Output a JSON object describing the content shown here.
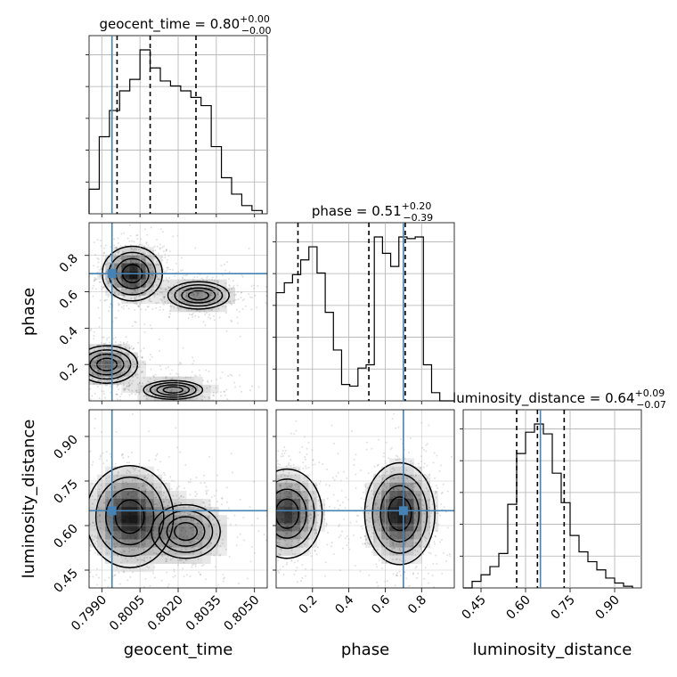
{
  "chart_data": {
    "type": "corner",
    "parameters": [
      "geocent_time",
      "phase",
      "luminosity_distance"
    ],
    "truths": {
      "geocent_time": 0.7994,
      "phase": 0.7,
      "luminosity_distance": 0.65
    },
    "titles": [
      {
        "param": "geocent_time",
        "name": "geocent_time",
        "median": "0.80",
        "plus": "+0.00",
        "minus": "−0.00"
      },
      {
        "param": "phase",
        "name": "phase",
        "median": "0.51",
        "plus": "+0.20",
        "minus": "−0.39"
      },
      {
        "param": "luminosity_distance",
        "name": "luminosity_distance",
        "median": "0.64",
        "plus": "+0.09",
        "minus": "−0.07"
      }
    ],
    "axes": {
      "geocent_time": {
        "label": "geocent_time",
        "range": [
          0.7985,
          0.8055
        ],
        "ticks": [
          0.799,
          0.8005,
          0.802,
          0.8035,
          0.805
        ],
        "tick_labels": [
          "0.7990",
          "0.8005",
          "0.8020",
          "0.8035",
          "0.8050"
        ]
      },
      "phase": {
        "label": "phase",
        "range": [
          0.0,
          0.98
        ],
        "ticks": [
          0.2,
          0.4,
          0.6,
          0.8
        ],
        "tick_labels": [
          "0.2",
          "0.4",
          "0.6",
          "0.8"
        ]
      },
      "luminosity_distance": {
        "label": "luminosity_distance",
        "range": [
          0.39,
          0.99
        ],
        "ticks": [
          0.45,
          0.6,
          0.75,
          0.9
        ],
        "tick_labels": [
          "0.45",
          "0.60",
          "0.75",
          "0.90"
        ]
      }
    },
    "histograms": {
      "geocent_time": {
        "bin_edges": [
          0.7985,
          0.7989,
          0.7993,
          0.7997,
          0.8001,
          0.8005,
          0.8009,
          0.8013,
          0.8017,
          0.8021,
          0.8025,
          0.8029,
          0.8033,
          0.8037,
          0.8041,
          0.8045,
          0.8049,
          0.8053
        ],
        "counts": [
          0.15,
          0.47,
          0.63,
          0.75,
          0.82,
          1.0,
          0.89,
          0.81,
          0.78,
          0.75,
          0.71,
          0.66,
          0.41,
          0.22,
          0.12,
          0.05,
          0.02
        ],
        "quantiles": [
          0.7996,
          0.8009,
          0.8027
        ]
      },
      "phase": {
        "bin_edges": [
          0.0,
          0.045,
          0.09,
          0.135,
          0.18,
          0.225,
          0.27,
          0.315,
          0.36,
          0.405,
          0.45,
          0.495,
          0.54,
          0.585,
          0.63,
          0.675,
          0.72,
          0.765,
          0.81,
          0.855,
          0.9,
          0.945,
          0.98
        ],
        "counts": [
          0.66,
          0.72,
          0.77,
          0.86,
          0.94,
          0.78,
          0.54,
          0.31,
          0.1,
          0.09,
          0.2,
          0.22,
          1.0,
          0.9,
          0.82,
          1.0,
          0.99,
          1.0,
          0.22,
          0.05,
          0.0,
          0.0
        ],
        "quantiles": [
          0.12,
          0.51,
          0.71
        ]
      },
      "luminosity_distance": {
        "bin_edges": [
          0.39,
          0.42,
          0.45,
          0.48,
          0.51,
          0.54,
          0.57,
          0.6,
          0.63,
          0.66,
          0.69,
          0.72,
          0.75,
          0.78,
          0.81,
          0.84,
          0.87,
          0.9,
          0.93,
          0.96
        ],
        "counts": [
          0.0,
          0.04,
          0.08,
          0.13,
          0.21,
          0.51,
          0.82,
          0.95,
          1.0,
          0.94,
          0.7,
          0.52,
          0.32,
          0.22,
          0.16,
          0.11,
          0.06,
          0.03,
          0.01
        ],
        "quantiles": [
          0.57,
          0.64,
          0.73
        ]
      }
    },
    "pairs": [
      {
        "x": "geocent_time",
        "y": "phase",
        "blobs": [
          {
            "cx": 0.8002,
            "cy": 0.7,
            "sx": 0.00055,
            "sy": 0.07,
            "w": 0.9
          },
          {
            "cx": 0.8028,
            "cy": 0.58,
            "sx": 0.0008,
            "sy": 0.05,
            "w": 0.5
          },
          {
            "cx": 0.7992,
            "cy": 0.2,
            "sx": 0.0007,
            "sy": 0.06,
            "w": 0.6
          },
          {
            "cx": 0.8018,
            "cy": 0.06,
            "sx": 0.0009,
            "sy": 0.04,
            "w": 0.4
          }
        ]
      },
      {
        "x": "geocent_time",
        "y": "luminosity_distance",
        "blobs": [
          {
            "cx": 0.8001,
            "cy": 0.63,
            "sx": 0.0008,
            "sy": 0.08,
            "w": 0.9
          },
          {
            "cx": 0.8023,
            "cy": 0.58,
            "sx": 0.0009,
            "sy": 0.06,
            "w": 0.5
          }
        ]
      },
      {
        "x": "phase",
        "y": "luminosity_distance",
        "blobs": [
          {
            "cx": 0.06,
            "cy": 0.64,
            "sx": 0.09,
            "sy": 0.07,
            "w": 0.8
          },
          {
            "cx": 0.68,
            "cy": 0.64,
            "sx": 0.09,
            "sy": 0.08,
            "w": 0.9
          }
        ]
      }
    ],
    "grid": true,
    "truth_color": "#4682b4",
    "hist_color": "#000000"
  }
}
